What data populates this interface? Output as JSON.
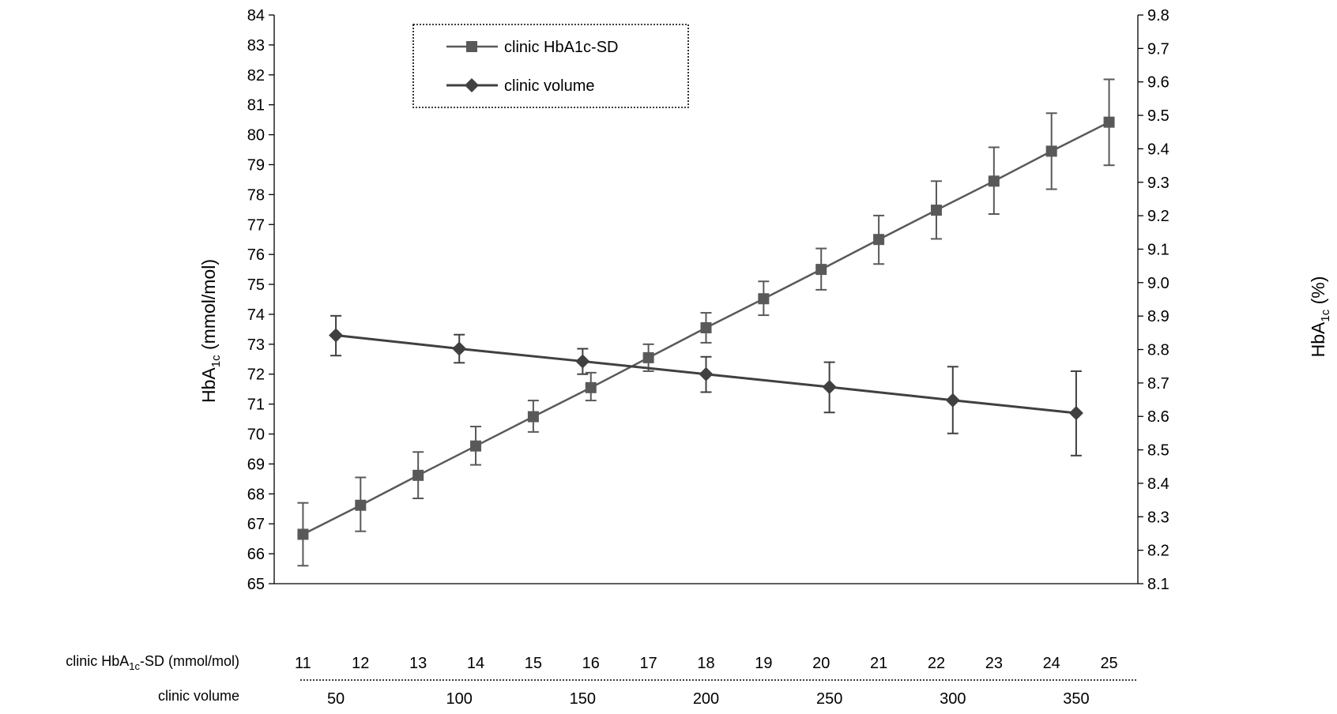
{
  "chart_data": {
    "type": "line",
    "left_axis": {
      "title_main": "HbA",
      "title_sub": "1c",
      "title_unit": " (mmol/mol)",
      "range": [
        65,
        84
      ],
      "ticks": [
        "65",
        "66",
        "67",
        "68",
        "69",
        "70",
        "71",
        "72",
        "73",
        "74",
        "75",
        "76",
        "77",
        "78",
        "79",
        "80",
        "81",
        "82",
        "83",
        "84"
      ]
    },
    "right_axis": {
      "title_main": "HbA",
      "title_sub": "1c",
      "title_unit": " (%)",
      "range": [
        8.1,
        9.8
      ],
      "ticks": [
        "8.1",
        "8.2",
        "8.3",
        "8.4",
        "8.5",
        "8.6",
        "8.7",
        "8.8",
        "8.9",
        "9.0",
        "9.1",
        "9.2",
        "9.3",
        "9.4",
        "9.5",
        "9.6",
        "9.7",
        "9.8"
      ]
    },
    "x_axis_sd": {
      "label_main": "clinic HbA",
      "label_sub": "1c",
      "label_unit": "-SD (mmol/mol)",
      "range": [
        10.5,
        25.5
      ],
      "ticks": [
        "11",
        "12",
        "13",
        "14",
        "15",
        "16",
        "17",
        "18",
        "19",
        "20",
        "21",
        "22",
        "23",
        "24",
        "25"
      ]
    },
    "x_axis_volume": {
      "label": "clinic volume",
      "range": [
        25,
        375
      ],
      "ticks": [
        "50",
        "100",
        "150",
        "200",
        "250",
        "300",
        "350"
      ]
    },
    "series": [
      {
        "name": "clinic HbA1c-SD",
        "marker": "square",
        "x_axis": "sd",
        "color": "#595959",
        "points": [
          {
            "x": 11,
            "y": 66.65,
            "err_low": 65.6,
            "err_high": 67.7
          },
          {
            "x": 12,
            "y": 67.62,
            "err_low": 66.75,
            "err_high": 68.55
          },
          {
            "x": 13,
            "y": 68.62,
            "err_low": 67.85,
            "err_high": 69.4
          },
          {
            "x": 14,
            "y": 69.6,
            "err_low": 68.97,
            "err_high": 70.25
          },
          {
            "x": 15,
            "y": 70.58,
            "err_low": 70.07,
            "err_high": 71.12
          },
          {
            "x": 16,
            "y": 71.55,
            "err_low": 71.12,
            "err_high": 72.05
          },
          {
            "x": 17,
            "y": 72.55,
            "err_low": 72.1,
            "err_high": 73.0
          },
          {
            "x": 18,
            "y": 73.55,
            "err_low": 73.05,
            "err_high": 74.05
          },
          {
            "x": 19,
            "y": 74.52,
            "err_low": 73.97,
            "err_high": 75.1
          },
          {
            "x": 20,
            "y": 75.5,
            "err_low": 74.82,
            "err_high": 76.2
          },
          {
            "x": 21,
            "y": 76.5,
            "err_low": 75.68,
            "err_high": 77.3
          },
          {
            "x": 22,
            "y": 77.48,
            "err_low": 76.52,
            "err_high": 78.45
          },
          {
            "x": 23,
            "y": 78.45,
            "err_low": 77.35,
            "err_high": 79.58
          },
          {
            "x": 24,
            "y": 79.45,
            "err_low": 78.18,
            "err_high": 80.72
          },
          {
            "x": 25,
            "y": 80.42,
            "err_low": 78.98,
            "err_high": 81.85
          }
        ]
      },
      {
        "name": "clinic volume",
        "marker": "diamond",
        "x_axis": "volume",
        "color": "#404040",
        "points": [
          {
            "x": 50,
            "y": 73.3,
            "err_low": 72.62,
            "err_high": 73.95
          },
          {
            "x": 100,
            "y": 72.85,
            "err_low": 72.38,
            "err_high": 73.32
          },
          {
            "x": 150,
            "y": 72.43,
            "err_low": 72.0,
            "err_high": 72.85
          },
          {
            "x": 200,
            "y": 72.0,
            "err_low": 71.4,
            "err_high": 72.58
          },
          {
            "x": 250,
            "y": 71.57,
            "err_low": 70.72,
            "err_high": 72.4
          },
          {
            "x": 300,
            "y": 71.13,
            "err_low": 70.02,
            "err_high": 72.25
          },
          {
            "x": 350,
            "y": 70.7,
            "err_low": 69.28,
            "err_high": 72.1
          }
        ]
      }
    ],
    "grid": false,
    "legend": {
      "placement": "top-left",
      "entries": [
        "clinic HbA1c-SD",
        "clinic volume"
      ],
      "border": "dotted"
    }
  }
}
